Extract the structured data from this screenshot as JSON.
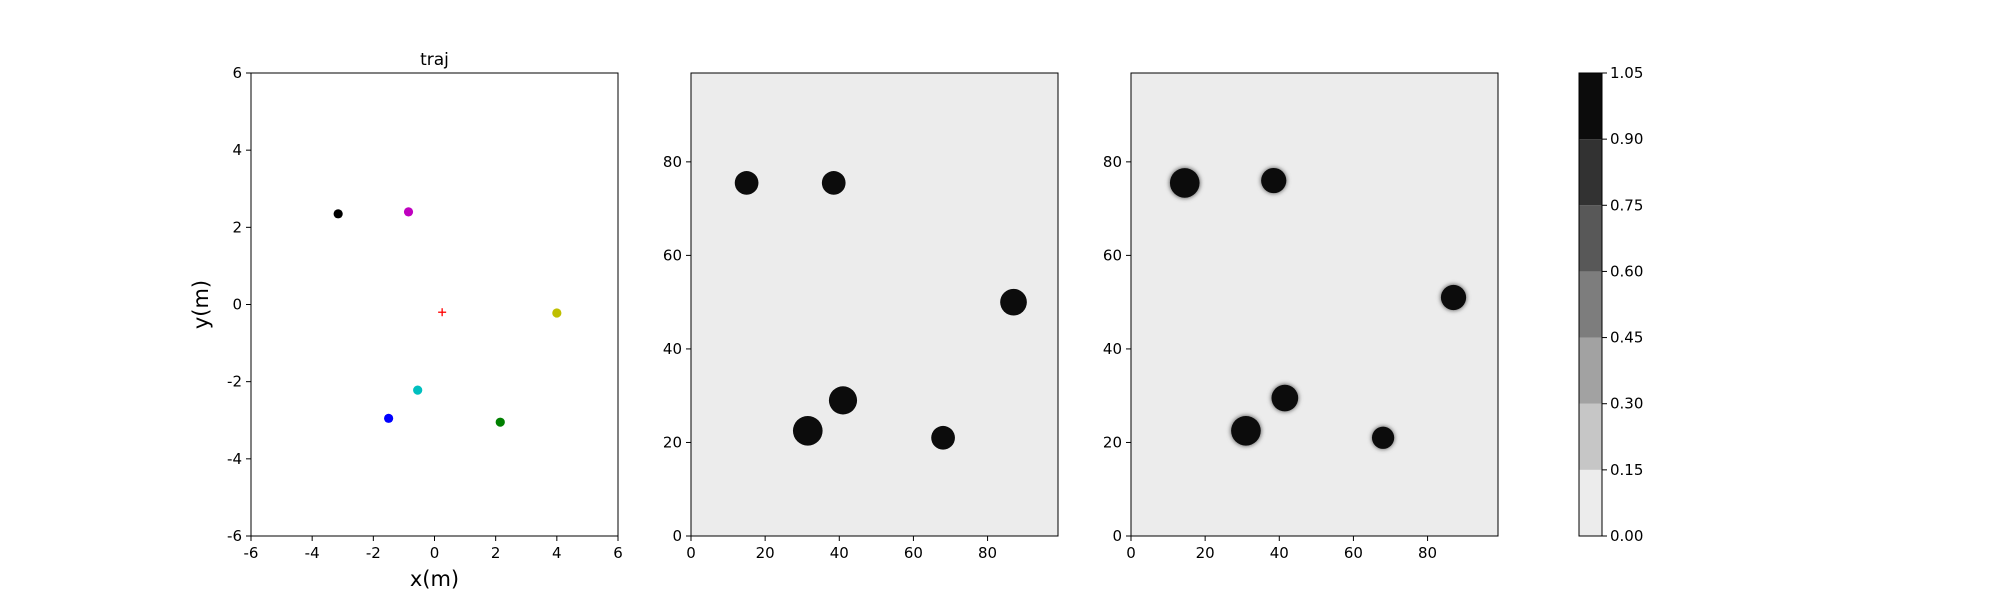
{
  "chart_data": [
    {
      "type": "scatter",
      "title": "traj",
      "xlabel": "x(m)",
      "ylabel": "y(m)",
      "xlim": [
        -6,
        6
      ],
      "ylim": [
        -6,
        6
      ],
      "xticks": [
        -6,
        -4,
        -2,
        0,
        2,
        4,
        6
      ],
      "yticks": [
        -6,
        -4,
        -2,
        0,
        2,
        4,
        6
      ],
      "grid": false,
      "points": [
        {
          "x": -3.15,
          "y": 2.35,
          "color": "#000000",
          "marker": "circle"
        },
        {
          "x": -0.85,
          "y": 2.4,
          "color": "#bf00bf",
          "marker": "circle"
        },
        {
          "x": 4.0,
          "y": -0.22,
          "color": "#bfbf00",
          "marker": "circle"
        },
        {
          "x": -0.55,
          "y": -2.22,
          "color": "#00bfbf",
          "marker": "circle"
        },
        {
          "x": -1.5,
          "y": -2.95,
          "color": "#0000ff",
          "marker": "circle"
        },
        {
          "x": 2.15,
          "y": -3.05,
          "color": "#008000",
          "marker": "circle"
        },
        {
          "x": 0.25,
          "y": -0.2,
          "color": "#ff0000",
          "marker": "plus"
        }
      ]
    },
    {
      "type": "heatmap",
      "title": "",
      "xlim": [
        0,
        99
      ],
      "ylim": [
        0,
        99
      ],
      "xticks": [
        0,
        20,
        40,
        60,
        80
      ],
      "yticks": [
        0,
        20,
        40,
        60,
        80
      ],
      "background_value": 0.08,
      "blob_value": 1.0,
      "edge": "sharp",
      "blobs": [
        {
          "x": 15,
          "y": 75.5,
          "r": 3.2
        },
        {
          "x": 38.5,
          "y": 75.5,
          "r": 3.2
        },
        {
          "x": 87,
          "y": 50,
          "r": 3.6
        },
        {
          "x": 41,
          "y": 29,
          "r": 3.8
        },
        {
          "x": 31.5,
          "y": 22.5,
          "r": 4.0
        },
        {
          "x": 68,
          "y": 21,
          "r": 3.2
        }
      ]
    },
    {
      "type": "heatmap",
      "title": "",
      "xlim": [
        0,
        99
      ],
      "ylim": [
        0,
        99
      ],
      "xticks": [
        0,
        20,
        40,
        60,
        80
      ],
      "yticks": [
        0,
        20,
        40,
        60,
        80
      ],
      "background_value": 0.08,
      "blob_value": 1.0,
      "edge": "soft",
      "blobs": [
        {
          "x": 14.5,
          "y": 75.5,
          "r": 4.0
        },
        {
          "x": 38.5,
          "y": 76,
          "r": 3.4
        },
        {
          "x": 87,
          "y": 51,
          "r": 3.4
        },
        {
          "x": 41.5,
          "y": 29.5,
          "r": 3.6
        },
        {
          "x": 31,
          "y": 22.5,
          "r": 4.0
        },
        {
          "x": 68,
          "y": 21,
          "r": 3.0
        }
      ]
    }
  ],
  "colorbar": {
    "levels": [
      0.0,
      0.15,
      0.3,
      0.45,
      0.6,
      0.75,
      0.9,
      1.05
    ],
    "labels": [
      "0.00",
      "0.15",
      "0.30",
      "0.45",
      "0.60",
      "0.75",
      "0.90",
      "1.05"
    ],
    "colors": [
      "#ececec",
      "#c6c6c6",
      "#a2a2a2",
      "#7d7d7d",
      "#585858",
      "#323232",
      "#0c0c0c"
    ]
  }
}
